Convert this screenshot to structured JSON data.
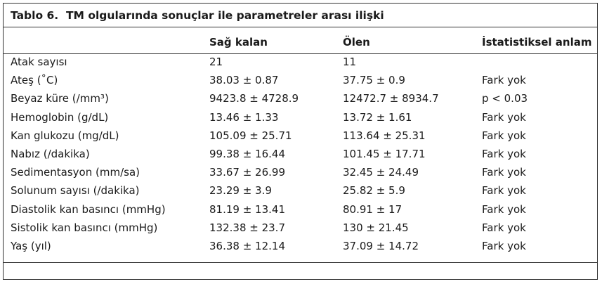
{
  "table": {
    "title": "Tablo 6.  TM olgularında sonuçlar ile parametreler arası ilişki",
    "header": [
      "Sağ kalan",
      "Ölen",
      "İstatistiksel anlam"
    ],
    "rows": [
      [
        "Atak sayısı",
        "21",
        "11"
      ],
      [
        "Ateş (˚C)",
        "38.03 ± 0.87",
        "37.75 ± 0.9",
        "Fark yok"
      ],
      [
        "Beyaz küre (/mm³)",
        "9423.8 ± 4728.9",
        "12472.7 ± 8934.7",
        "p < 0.03"
      ],
      [
        "Hemoglobin (g/dL)",
        "13.46 ± 1.33",
        "13.72 ± 1.61",
        "Fark yok"
      ],
      [
        "Kan glukozu (mg/dL)",
        "105.09 ± 25.71",
        "113.64 ± 25.31",
        "Fark yok"
      ],
      [
        "Nabız (/dakika)",
        "99.38 ± 16.44",
        "101.45 ± 17.71",
        "Fark yok"
      ],
      [
        "Sedimentasyon (mm/sa)",
        "33.67 ± 26.99",
        "32.45 ± 24.49",
        "Fark yok"
      ],
      [
        "Solunum sayısı (/dakika)",
        "23.29 ± 3.9",
        "25.82 ± 5.9",
        "Fark yok"
      ],
      [
        "Diastolik kan basıncı (mmHg)",
        "81.19 ± 13.41",
        "80.91 ± 17",
        "Fark yok"
      ],
      [
        "Sistolik kan basıncı (mmHg)",
        "132.38 ± 23.7",
        "130 ± 21.45",
        "Fark yok"
      ],
      [
        "Yaş (yıl)",
        "36.38 ± 12.14",
        "37.09 ± 14.72",
        "Fark yok"
      ]
    ]
  }
}
